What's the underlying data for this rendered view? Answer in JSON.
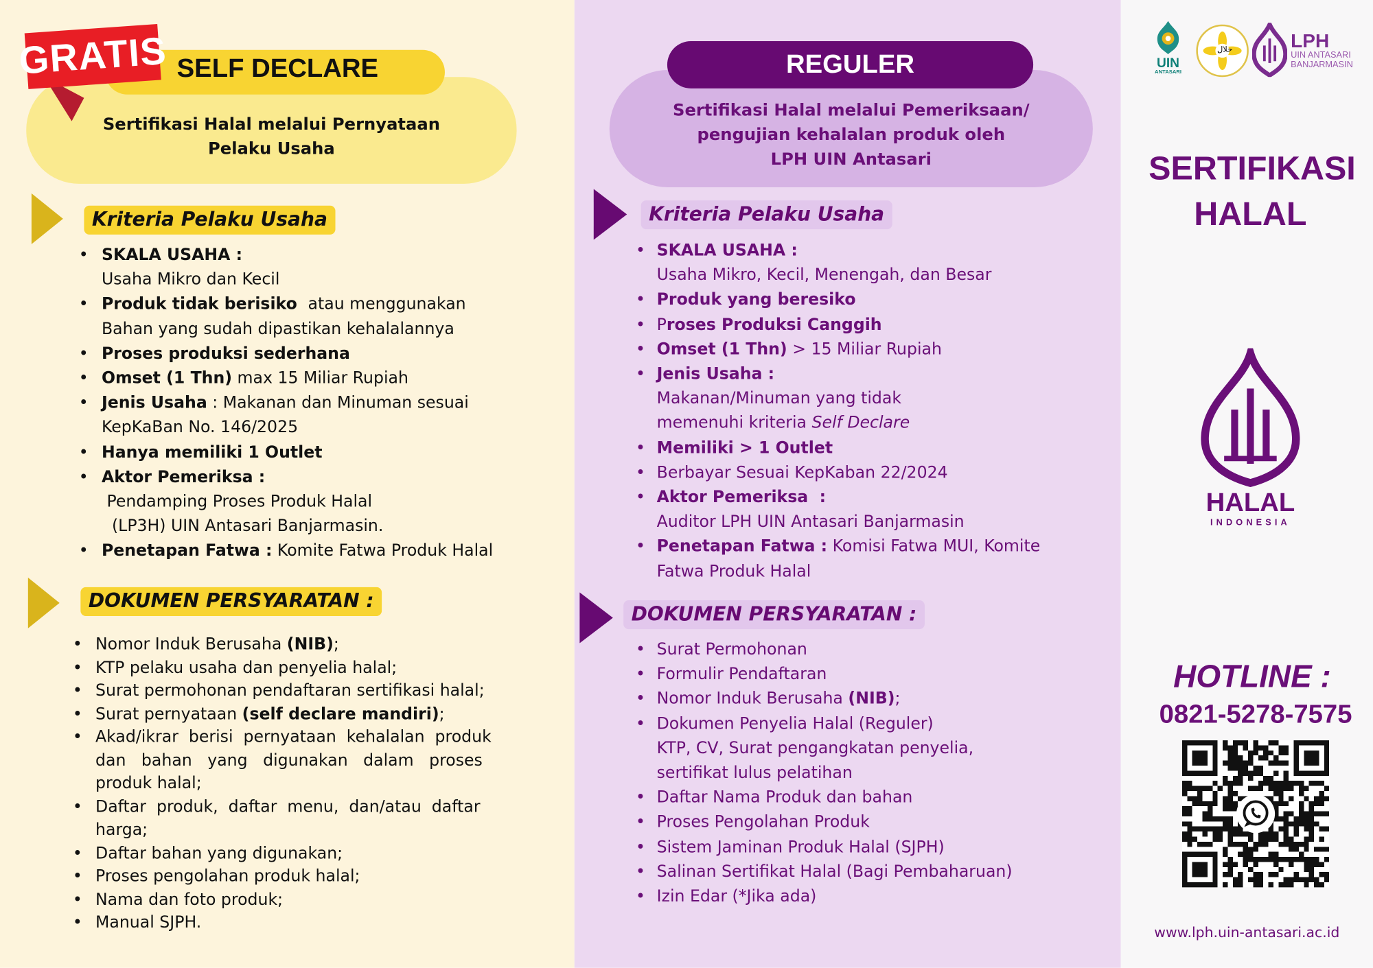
{
  "colors": {
    "yellow": "#f8d432",
    "light_yellow": "#faea8f",
    "red": "#e81e25",
    "purple": "#6a0f78",
    "dark_purple": "#670a72",
    "lavender": "#d6b3e4"
  },
  "left": {
    "badge": "GRATIS",
    "title": "SELF DECLARE",
    "subtitle_line1": "Sertifikasi Halal melalui Pernyataan",
    "subtitle_line2": "Pelaku Usaha",
    "kriteria_header": "Kriteria Pelaku Usaha",
    "kriteria": [
      [
        {
          "t": "SKALA USAHA :",
          "b": true
        },
        {
          "br": true
        },
        {
          "t": "Usaha Mikro dan Kecil"
        }
      ],
      [
        {
          "t": "Produk tidak berisiko ",
          "b": true
        },
        {
          "t": " atau menggunakan"
        },
        {
          "br": true
        },
        {
          "t": "Bahan yang sudah dipastikan kehalalannya"
        }
      ],
      [
        {
          "t": "Proses produksi sederhana",
          "b": true
        }
      ],
      [
        {
          "t": "Omset (1 Thn)",
          "b": true
        },
        {
          "t": " max 15 Miliar Rupiah"
        }
      ],
      [
        {
          "t": "Jenis Usaha",
          "b": true
        },
        {
          "t": " : Makanan dan Minuman sesuai"
        },
        {
          "br": true
        },
        {
          "t": "KepKaBan No. 146/2025"
        }
      ],
      [
        {
          "t": "Hanya memiliki 1 Outlet",
          "b": true
        }
      ],
      [
        {
          "t": "Aktor Pemeriksa :",
          "b": true
        },
        {
          "br": true
        },
        {
          "t": " Pendamping Proses Produk Halal"
        },
        {
          "br": true
        },
        {
          "t": "  (LP3H) UIN Antasari Banjarmasin."
        }
      ],
      [
        {
          "t": "Penetapan Fatwa :",
          "b": true
        },
        {
          "t": " Komite Fatwa Produk Halal"
        }
      ]
    ],
    "dokumen_header": "DOKUMEN PERSYARATAN :",
    "dokumen": [
      [
        {
          "t": "Nomor Induk Berusaha "
        },
        {
          "t": "(NIB)",
          "b": true
        },
        {
          "t": ";"
        }
      ],
      [
        {
          "t": "KTP pelaku usaha dan penyelia halal;"
        }
      ],
      [
        {
          "t": "Surat permohonan pendaftaran sertifikasi halal;"
        }
      ],
      [
        {
          "t": "Surat pernyataan "
        },
        {
          "t": "(self declare mandiri)",
          "b": true
        },
        {
          "t": ";"
        }
      ],
      [
        {
          "t": "Akad/ikrar  berisi  pernyataan  kehalalan  produk"
        },
        {
          "br": true
        },
        {
          "t": "dan   bahan   yang   digunakan   dalam   proses"
        },
        {
          "br": true
        },
        {
          "t": "produk halal;"
        }
      ],
      [
        {
          "t": "Daftar  produk,  daftar  menu,  dan/atau  daftar"
        },
        {
          "br": true
        },
        {
          "t": "harga;"
        }
      ],
      [
        {
          "t": "Daftar bahan yang digunakan;"
        }
      ],
      [
        {
          "t": "Proses pengolahan produk halal;"
        }
      ],
      [
        {
          "t": "Nama dan foto produk;"
        }
      ],
      [
        {
          "t": "Manual SJPH."
        }
      ]
    ]
  },
  "middle": {
    "title": "REGULER",
    "subtitle_line1": "Sertifikasi Halal melalui Pemeriksaan/",
    "subtitle_line2": "pengujian kehalalan produk oleh",
    "subtitle_line3": "LPH UIN Antasari",
    "kriteria_header": "Kriteria Pelaku Usaha",
    "kriteria": [
      [
        {
          "t": "SKALA USAHA :",
          "b": true
        },
        {
          "br": true
        },
        {
          "t": "Usaha Mikro, Kecil, Menengah, dan Besar"
        }
      ],
      [
        {
          "t": "Produk yang beresiko",
          "b": true
        }
      ],
      [
        {
          "t": "P"
        },
        {
          "t": "roses Produksi Canggih",
          "b": true
        }
      ],
      [
        {
          "t": "Omset (1 Thn)",
          "b": true
        },
        {
          "t": " > 15 Miliar Rupiah"
        }
      ],
      [
        {
          "t": "Jenis Usaha :",
          "b": true
        },
        {
          "br": true
        },
        {
          "t": "Makanan/Minuman yang tidak"
        },
        {
          "br": true
        },
        {
          "t": "memenuhi kriteria "
        },
        {
          "t": "Self Declare",
          "i": true
        }
      ],
      [
        {
          "t": "Memiliki > 1 Outlet",
          "b": true
        }
      ],
      [
        {
          "t": "Berbayar Sesuai KepKaban 22/2024"
        }
      ],
      [
        {
          "t": "Aktor Pemeriksa  :",
          "b": true
        },
        {
          "br": true
        },
        {
          "t": "Auditor LPH UIN Antasari Banjarmasin"
        }
      ],
      [
        {
          "t": "Penetapan Fatwa :",
          "b": true
        },
        {
          "t": " Komisi Fatwa MUI, Komite"
        },
        {
          "br": true
        },
        {
          "t": "Fatwa Produk Halal"
        }
      ]
    ],
    "dokumen_header": "DOKUMEN PERSYARATAN :",
    "dokumen": [
      [
        {
          "t": "Surat Permohonan"
        }
      ],
      [
        {
          "t": "Formulir Pendaftaran"
        }
      ],
      [
        {
          "t": "Nomor Induk Berusaha "
        },
        {
          "t": "(NIB)",
          "b": true
        },
        {
          "t": ";"
        }
      ],
      [
        {
          "t": "Dokumen Penyelia Halal (Reguler)"
        },
        {
          "br": true
        },
        {
          "t": "KTP, CV, Surat pengangkatan penyelia,"
        },
        {
          "br": true
        },
        {
          "t": "sertifikat lulus pelatihan"
        }
      ],
      [
        {
          "t": "Daftar Nama Produk dan bahan"
        }
      ],
      [
        {
          "t": "Proses Pengolahan Produk"
        }
      ],
      [
        {
          "t": "Sistem Jaminan Produk Halal (SJPH)"
        }
      ],
      [
        {
          "t": "Salinan Sertifikat Halal (Bagi Pembaharuan)"
        }
      ],
      [
        {
          "t": "Izin Edar (*Jika ada)"
        }
      ]
    ]
  },
  "right": {
    "logos": {
      "uin": {
        "line1": "UIN",
        "line2": "ANTASARI"
      },
      "pusat": {
        "text": "PUSAT KAJIAN HALAL UIN ANTASARI BANJARMASIN",
        "arabic": "حلال"
      },
      "lph": {
        "title": "LPH",
        "line1": "UIN ANTASARI",
        "line2": "BANJARMASIN"
      }
    },
    "title_line1": "SERTIFIKASI",
    "title_line2": "HALAL",
    "halal_logo": {
      "word": "HALAL",
      "country": "INDONESIA"
    },
    "hotline_label": "HOTLINE :",
    "phone": "0821-5278-7575",
    "website": "www.lph.uin-antasari.ac.id"
  }
}
